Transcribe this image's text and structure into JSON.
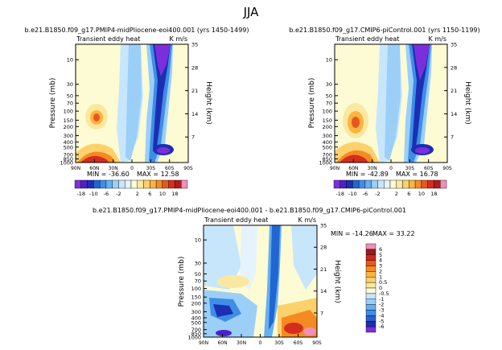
{
  "page_title": "JJA",
  "colors": {
    "ramp18": [
      "#7b2fdc",
      "#4b22c9",
      "#1c2fb3",
      "#2166d3",
      "#3e8ee8",
      "#66b0f2",
      "#9ccff7",
      "#c7e6fb",
      "#e4f3fd",
      "#fdfbd4",
      "#fbe8a0",
      "#fcd06b",
      "#fab43f",
      "#f58a25",
      "#e8581e",
      "#d42d1e",
      "#b31a1a",
      "#f090b8"
    ],
    "ramp_diff": [
      "#7b2fdc",
      "#1c2fb3",
      "#2b5fd0",
      "#3e8ee8",
      "#66b0f2",
      "#9ccff7",
      "#c7e6fb",
      "#fdfbd4",
      "#fbe8a0",
      "#fcd06b",
      "#fab43f",
      "#f58a25",
      "#e8581e",
      "#c82a1e",
      "#9e1a1a",
      "#f090b8"
    ]
  },
  "chart_data": [
    {
      "type": "heatmap",
      "title": "b.e21.B1850.f09_g17.PMIP4-midPliocene-eoi400.001 (yrs 1450-1499)",
      "subtitle_left": "Transient eddy heat",
      "subtitle_right": "K m/s",
      "ylabel": "Pressure (mb)",
      "ylabel_right": "Height (km)",
      "x_ticks": [
        "90N",
        "60N",
        "30N",
        "0",
        "30S",
        "60S",
        "90S"
      ],
      "y_ticks": [
        "10",
        "30",
        "50",
        "70",
        "100",
        "150",
        "200",
        "300",
        "400",
        "500",
        "700",
        "850",
        "1000"
      ],
      "y_ticks_right": [
        "35",
        "28",
        "21",
        "14",
        "7"
      ],
      "min_label": "MIN = -36.60",
      "max_label": "MAX = 12.58",
      "colorbar_labels": [
        "-18",
        "-10",
        "-6",
        "-2",
        "2",
        "6",
        "10",
        "18"
      ]
    },
    {
      "type": "heatmap",
      "title": "b.e21.B1850.f09_g17.CMIP6-piControl.001 (yrs 1150-1199)",
      "subtitle_left": "Transient eddy heat",
      "subtitle_right": "K m/s",
      "ylabel": "Pressure (mb)",
      "ylabel_right": "Height (km)",
      "x_ticks": [
        "90N",
        "60N",
        "30N",
        "0",
        "30S",
        "60S",
        "90S"
      ],
      "y_ticks": [
        "10",
        "30",
        "50",
        "70",
        "100",
        "150",
        "200",
        "300",
        "400",
        "500",
        "700",
        "850",
        "1000"
      ],
      "y_ticks_right": [
        "35",
        "28",
        "21",
        "14",
        "7"
      ],
      "min_label": "MIN = -42.89",
      "max_label": "MAX = 16.78",
      "colorbar_labels": [
        "-18",
        "-10",
        "-6",
        "-2",
        "2",
        "6",
        "10",
        "18"
      ]
    },
    {
      "type": "heatmap",
      "title": "b.e21.B1850.f09_g17.PMIP4-midPliocene-eoi400.001 - b.e21.B1850.f09_g17.CMIP6-piControl.001",
      "subtitle_left": "Transient eddy heat",
      "subtitle_right": "K m/s",
      "ylabel": "Pressure (mb)",
      "ylabel_right": "Height (km)",
      "x_ticks": [
        "90N",
        "60N",
        "30N",
        "0",
        "30S",
        "60S",
        "90S"
      ],
      "y_ticks": [
        "10",
        "30",
        "50",
        "70",
        "100",
        "150",
        "200",
        "300",
        "400",
        "500",
        "700",
        "850",
        "1000"
      ],
      "y_ticks_right": [
        "35",
        "28",
        "21",
        "14",
        "7"
      ],
      "min_label": "MIN = -14.26",
      "max_label": "MAX = 33.22",
      "colorbar_labels": [
        "6",
        "5",
        "4",
        "3",
        "2",
        "1",
        "0.5",
        "0",
        "-0.5",
        "-1",
        "-2",
        "-3",
        "-4",
        "-5",
        "-6"
      ]
    }
  ]
}
